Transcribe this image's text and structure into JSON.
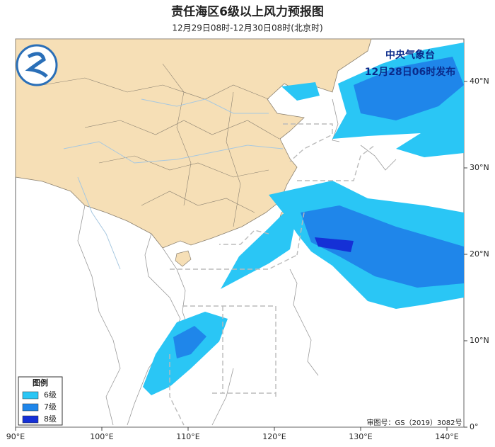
{
  "header": {
    "title": "责任海区6级以上风力预报图",
    "subtitle": "12月29日08时-12月30日08时(北京时)"
  },
  "issuer": {
    "name": "中央气象台",
    "time": "12月28日06时发布"
  },
  "legend": {
    "title": "图例",
    "items": [
      {
        "label": "6级",
        "color": "#2ac6f5"
      },
      {
        "label": "7级",
        "color": "#1f86ea"
      },
      {
        "label": "8级",
        "color": "#1530d6"
      }
    ]
  },
  "lon_labels": [
    "90°E",
    "100°E",
    "110°E",
    "120°E",
    "130°E",
    "140°E"
  ],
  "lat_labels": [
    "40°N",
    "30°N",
    "20°N",
    "10°N",
    "0°"
  ],
  "approval": "审图号：GS（2019）3082号"
}
